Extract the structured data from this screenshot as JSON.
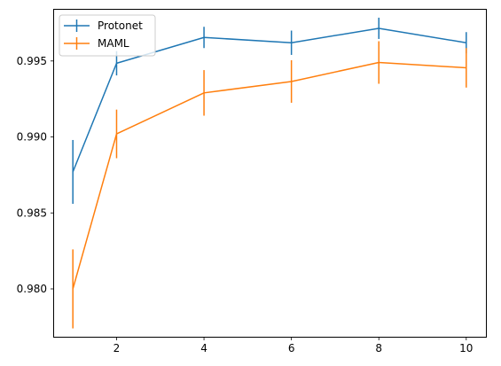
{
  "chart_data": {
    "type": "line",
    "title": "",
    "xlabel": "",
    "ylabel": "",
    "x": [
      1,
      2,
      4,
      6,
      8,
      10
    ],
    "xlim": [
      0.55,
      10.45
    ],
    "ylim": [
      0.97685,
      0.99843
    ],
    "xticks": [
      2,
      4,
      6,
      8,
      10
    ],
    "yticks": [
      0.98,
      0.985,
      0.99,
      0.995
    ],
    "ytick_labels": [
      "0.980",
      "0.985",
      "0.990",
      "0.995"
    ],
    "grid": false,
    "legend": "upper-left",
    "error_bars": true,
    "series": [
      {
        "name": "Protonet",
        "color": "#1f77b4",
        "values": [
          0.9877,
          0.99485,
          0.99655,
          0.9962,
          0.99715,
          0.9962
        ],
        "err": [
          0.0021,
          0.0008,
          0.0007,
          0.0008,
          0.0007,
          0.0007
        ]
      },
      {
        "name": "MAML",
        "color": "#ff7f0e",
        "values": [
          0.98,
          0.9902,
          0.9929,
          0.99365,
          0.9949,
          0.99455
        ],
        "err": [
          0.0026,
          0.0016,
          0.0015,
          0.0014,
          0.0014,
          0.0013
        ]
      }
    ]
  }
}
